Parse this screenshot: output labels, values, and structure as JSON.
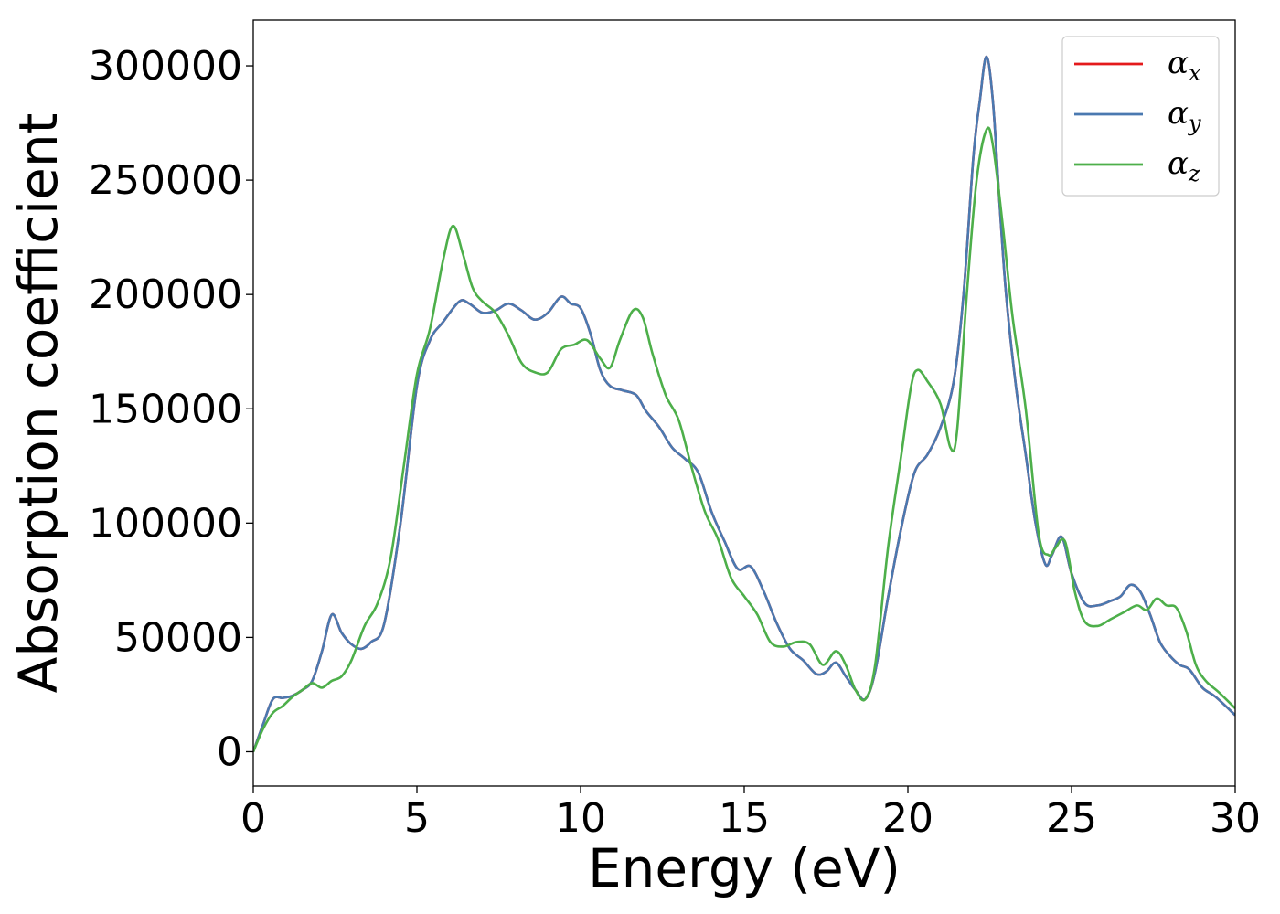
{
  "chart_data": {
    "type": "line",
    "title": "",
    "xlabel": "Energy (eV)",
    "ylabel": "Absorption coefficient",
    "xlim": [
      0,
      30
    ],
    "ylim": [
      -15000,
      320000
    ],
    "xticks": [
      "0",
      "5",
      "10",
      "15",
      "20",
      "25",
      "30"
    ],
    "xtick_values": [
      0,
      5,
      10,
      15,
      20,
      25,
      30
    ],
    "yticks": [
      "0",
      "50000",
      "100000",
      "150000",
      "200000",
      "250000",
      "300000"
    ],
    "ytick_values": [
      0,
      50000,
      100000,
      150000,
      200000,
      250000,
      300000
    ],
    "grid": false,
    "legend_position": "top-right",
    "series": [
      {
        "name": "αx",
        "symbol": "α",
        "subscript": "x",
        "color": "#e41a1c",
        "x": [
          0,
          0.3,
          0.6,
          0.9,
          1.2,
          1.5,
          1.8,
          2.1,
          2.4,
          2.7,
          3.0,
          3.3,
          3.6,
          4.0,
          4.5,
          5.0,
          5.4,
          5.8,
          6.3,
          6.6,
          7.0,
          7.4,
          7.8,
          8.2,
          8.6,
          9.0,
          9.4,
          9.7,
          10.0,
          10.3,
          10.6,
          10.9,
          11.3,
          11.7,
          12.0,
          12.4,
          12.8,
          13.2,
          13.6,
          14.0,
          14.4,
          14.8,
          15.2,
          15.6,
          16.0,
          16.4,
          16.8,
          17.2,
          17.5,
          17.8,
          18.1,
          18.4,
          18.7,
          19.0,
          19.4,
          19.8,
          20.2,
          20.6,
          21.0,
          21.4,
          21.7,
          22.0,
          22.2,
          22.4,
          22.6,
          22.8,
          23.0,
          23.3,
          23.6,
          23.9,
          24.2,
          24.4,
          24.7,
          25.0,
          25.4,
          25.8,
          26.2,
          26.5,
          26.8,
          27.1,
          27.4,
          27.7,
          28.0,
          28.3,
          28.6,
          29.0,
          29.4,
          30.0
        ],
        "y": [
          0,
          12000,
          23000,
          23500,
          24500,
          27000,
          31000,
          44000,
          60000,
          52000,
          47000,
          45000,
          48000,
          56000,
          100000,
          160000,
          180000,
          188000,
          197000,
          196000,
          192000,
          193000,
          196000,
          193000,
          189000,
          192000,
          199000,
          196000,
          194000,
          183000,
          167000,
          160000,
          158000,
          156000,
          149000,
          142000,
          133000,
          128000,
          122000,
          105000,
          92000,
          80000,
          81000,
          70000,
          56000,
          45000,
          40000,
          34000,
          35000,
          39000,
          33000,
          27000,
          23000,
          35000,
          68000,
          98000,
          122000,
          130000,
          142000,
          162000,
          200000,
          260000,
          285000,
          304000,
          284000,
          240000,
          200000,
          160000,
          130000,
          100000,
          82000,
          86000,
          94000,
          78000,
          65000,
          64000,
          66000,
          68000,
          73000,
          70000,
          60000,
          48000,
          42000,
          38000,
          36000,
          28000,
          24000,
          16000
        ]
      },
      {
        "name": "αy",
        "symbol": "α",
        "subscript": "y",
        "color": "#4a79b0",
        "x": [
          0,
          0.3,
          0.6,
          0.9,
          1.2,
          1.5,
          1.8,
          2.1,
          2.4,
          2.7,
          3.0,
          3.3,
          3.6,
          4.0,
          4.5,
          5.0,
          5.4,
          5.8,
          6.3,
          6.6,
          7.0,
          7.4,
          7.8,
          8.2,
          8.6,
          9.0,
          9.4,
          9.7,
          10.0,
          10.3,
          10.6,
          10.9,
          11.3,
          11.7,
          12.0,
          12.4,
          12.8,
          13.2,
          13.6,
          14.0,
          14.4,
          14.8,
          15.2,
          15.6,
          16.0,
          16.4,
          16.8,
          17.2,
          17.5,
          17.8,
          18.1,
          18.4,
          18.7,
          19.0,
          19.4,
          19.8,
          20.2,
          20.6,
          21.0,
          21.4,
          21.7,
          22.0,
          22.2,
          22.4,
          22.6,
          22.8,
          23.0,
          23.3,
          23.6,
          23.9,
          24.2,
          24.4,
          24.7,
          25.0,
          25.4,
          25.8,
          26.2,
          26.5,
          26.8,
          27.1,
          27.4,
          27.7,
          28.0,
          28.3,
          28.6,
          29.0,
          29.4,
          30.0
        ],
        "y": [
          0,
          12000,
          23000,
          23500,
          24500,
          27000,
          31000,
          44000,
          60000,
          52000,
          47000,
          45000,
          48000,
          56000,
          100000,
          160000,
          180000,
          188000,
          197000,
          196000,
          192000,
          193000,
          196000,
          193000,
          189000,
          192000,
          199000,
          196000,
          194000,
          183000,
          167000,
          160000,
          158000,
          156000,
          149000,
          142000,
          133000,
          128000,
          122000,
          105000,
          92000,
          80000,
          81000,
          70000,
          56000,
          45000,
          40000,
          34000,
          35000,
          39000,
          33000,
          27000,
          23000,
          35000,
          68000,
          98000,
          122000,
          130000,
          142000,
          162000,
          200000,
          260000,
          285000,
          304000,
          284000,
          240000,
          200000,
          160000,
          130000,
          100000,
          82000,
          86000,
          94000,
          78000,
          65000,
          64000,
          66000,
          68000,
          73000,
          70000,
          60000,
          48000,
          42000,
          38000,
          36000,
          28000,
          24000,
          16000
        ]
      },
      {
        "name": "αz",
        "symbol": "α",
        "subscript": "z",
        "color": "#4daf4a",
        "x": [
          0,
          0.3,
          0.6,
          0.9,
          1.2,
          1.5,
          1.8,
          2.1,
          2.4,
          2.7,
          3.0,
          3.4,
          3.8,
          4.2,
          4.6,
          5.0,
          5.4,
          5.8,
          6.1,
          6.4,
          6.7,
          7.0,
          7.4,
          7.8,
          8.2,
          8.6,
          9.0,
          9.4,
          9.8,
          10.2,
          10.6,
          10.9,
          11.2,
          11.6,
          11.9,
          12.2,
          12.6,
          13.0,
          13.4,
          13.8,
          14.2,
          14.6,
          15.0,
          15.4,
          15.8,
          16.2,
          16.6,
          17.0,
          17.4,
          17.8,
          18.1,
          18.4,
          18.7,
          19.0,
          19.4,
          19.8,
          20.1,
          20.3,
          20.6,
          21.0,
          21.3,
          21.5,
          21.8,
          22.1,
          22.4,
          22.6,
          22.9,
          23.2,
          23.6,
          24.0,
          24.3,
          24.5,
          24.8,
          25.1,
          25.4,
          25.8,
          26.2,
          26.6,
          27.0,
          27.3,
          27.6,
          27.9,
          28.2,
          28.5,
          28.8,
          29.1,
          29.5,
          30.0
        ],
        "y": [
          0,
          10000,
          17000,
          20000,
          24000,
          27000,
          30000,
          28000,
          31000,
          33000,
          40000,
          55000,
          65000,
          85000,
          125000,
          165000,
          185000,
          215000,
          230000,
          218000,
          203000,
          197000,
          192000,
          182000,
          170000,
          166000,
          166000,
          176000,
          178000,
          180000,
          172000,
          168000,
          180000,
          193000,
          190000,
          174000,
          156000,
          145000,
          124000,
          105000,
          93000,
          76000,
          68000,
          60000,
          48000,
          46000,
          48000,
          47000,
          38000,
          44000,
          38000,
          27000,
          23000,
          38000,
          90000,
          130000,
          160000,
          167000,
          162000,
          152000,
          133000,
          140000,
          200000,
          250000,
          272000,
          265000,
          230000,
          190000,
          150000,
          95000,
          86000,
          89000,
          92000,
          70000,
          57000,
          55000,
          58000,
          61000,
          64000,
          62000,
          67000,
          64000,
          63000,
          53000,
          38000,
          31000,
          26000,
          19000
        ]
      }
    ]
  }
}
